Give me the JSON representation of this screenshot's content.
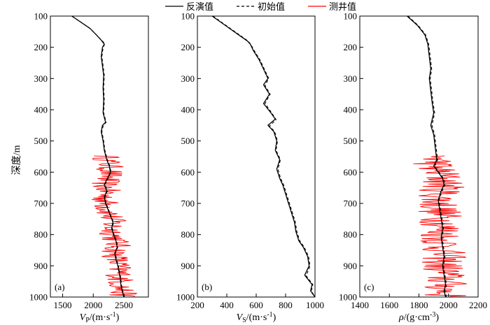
{
  "legend": {
    "items": [
      {
        "label": "反演值",
        "style": "solid",
        "color": "#000000"
      },
      {
        "label": "初始值",
        "style": "dashed",
        "color": "#000000"
      },
      {
        "label": "测井值",
        "style": "solid",
        "color": "#ff0000"
      }
    ]
  },
  "chart_data": [
    {
      "type": "line",
      "panel_tag": "(a)",
      "ylabel": "深度/m",
      "xlabel_main": "V",
      "xlabel_sub": "P",
      "xlabel_unit": "/(m·s",
      "xlabel_exp": "-1",
      "xlabel_close": ")",
      "xlim": [
        1300,
        2900
      ],
      "ylim": [
        100,
        1000
      ],
      "y_inverted": true,
      "xticks": [
        1500,
        2000,
        2500
      ],
      "yticks": [
        100,
        200,
        300,
        400,
        500,
        600,
        700,
        800,
        900,
        1000
      ],
      "xtick_labels": [
        "1500",
        "2000",
        "2500"
      ],
      "ytick_labels": [
        "100",
        "200",
        "300",
        "400",
        "500",
        "600",
        "700",
        "800",
        "900",
        "1000"
      ],
      "series": [
        {
          "role": "inverted",
          "color": "#000000",
          "dash": "none",
          "width": 1.3,
          "points": [
            [
              1650,
              100
            ],
            [
              1800,
              120
            ],
            [
              1950,
              140
            ],
            [
              2050,
              160
            ],
            [
              2120,
              175
            ],
            [
              2180,
              190
            ],
            [
              2150,
              200
            ],
            [
              2130,
              230
            ],
            [
              2150,
              260
            ],
            [
              2170,
              290
            ],
            [
              2160,
              330
            ],
            [
              2170,
              370
            ],
            [
              2160,
              410
            ],
            [
              2200,
              440
            ],
            [
              2150,
              450
            ],
            [
              2130,
              470
            ],
            [
              2160,
              500
            ],
            [
              2180,
              530
            ],
            [
              2220,
              560
            ],
            [
              2260,
              580
            ],
            [
              2280,
              600
            ],
            [
              2230,
              620
            ],
            [
              2180,
              640
            ],
            [
              2220,
              660
            ],
            [
              2180,
              680
            ],
            [
              2200,
              700
            ],
            [
              2240,
              720
            ],
            [
              2280,
              740
            ],
            [
              2320,
              760
            ],
            [
              2300,
              780
            ],
            [
              2330,
              800
            ],
            [
              2370,
              820
            ],
            [
              2390,
              840
            ],
            [
              2350,
              860
            ],
            [
              2370,
              880
            ],
            [
              2400,
              900
            ],
            [
              2420,
              920
            ],
            [
              2440,
              940
            ],
            [
              2450,
              960
            ],
            [
              2470,
              980
            ],
            [
              2500,
              1000
            ]
          ]
        },
        {
          "role": "initial",
          "color": "#000000",
          "dash": "4 3",
          "width": 1.1,
          "points": [
            [
              1650,
              100
            ],
            [
              1800,
              120
            ],
            [
              1950,
              140
            ],
            [
              2050,
              160
            ],
            [
              2120,
              175
            ],
            [
              2190,
              188
            ],
            [
              2160,
              200
            ],
            [
              2140,
              230
            ],
            [
              2160,
              260
            ],
            [
              2180,
              290
            ],
            [
              2170,
              330
            ],
            [
              2180,
              370
            ],
            [
              2170,
              410
            ],
            [
              2210,
              440
            ],
            [
              2160,
              452
            ],
            [
              2140,
              470
            ],
            [
              2170,
              500
            ],
            [
              2190,
              530
            ],
            [
              2230,
              560
            ],
            [
              2270,
              580
            ],
            [
              2290,
              600
            ],
            [
              2240,
              620
            ],
            [
              2190,
              640
            ],
            [
              2230,
              660
            ],
            [
              2190,
              680
            ],
            [
              2210,
              700
            ],
            [
              2250,
              720
            ],
            [
              2290,
              740
            ],
            [
              2330,
              760
            ],
            [
              2310,
              780
            ],
            [
              2340,
              800
            ],
            [
              2380,
              820
            ],
            [
              2400,
              840
            ],
            [
              2360,
              860
            ],
            [
              2380,
              880
            ],
            [
              2410,
              900
            ],
            [
              2430,
              920
            ],
            [
              2450,
              940
            ],
            [
              2460,
              960
            ],
            [
              2480,
              980
            ],
            [
              2510,
              1000
            ]
          ]
        },
        {
          "role": "logged",
          "color": "#ff0000",
          "dash": "none",
          "width": 0.9,
          "y_start": 548,
          "y_end": 1000,
          "y_step": 2.5,
          "center_from": "inverted",
          "x_spread": 230
        }
      ]
    },
    {
      "type": "line",
      "panel_tag": "(b)",
      "xlabel_main": "V",
      "xlabel_sub": "S",
      "xlabel_unit": "/(m·s",
      "xlabel_exp": "-1",
      "xlabel_close": ")",
      "xlim": [
        200,
        1000
      ],
      "ylim": [
        100,
        1000
      ],
      "y_inverted": true,
      "xticks": [
        200,
        400,
        600,
        800,
        1000
      ],
      "yticks": [
        100,
        200,
        300,
        400,
        500,
        600,
        700,
        800,
        900,
        1000
      ],
      "xtick_labels": [
        "200",
        "400",
        "600",
        "800",
        "1000"
      ],
      "ytick_labels": [
        "100",
        "200",
        "300",
        "400",
        "500",
        "600",
        "700",
        "800",
        "900",
        "1000"
      ],
      "series": [
        {
          "role": "inverted",
          "color": "#000000",
          "dash": "none",
          "width": 1.3,
          "points": [
            [
              300,
              100
            ],
            [
              360,
              120
            ],
            [
              420,
              140
            ],
            [
              480,
              160
            ],
            [
              540,
              180
            ],
            [
              560,
              190
            ],
            [
              580,
              210
            ],
            [
              620,
              240
            ],
            [
              650,
              270
            ],
            [
              680,
              300
            ],
            [
              650,
              320
            ],
            [
              690,
              350
            ],
            [
              650,
              380
            ],
            [
              700,
              410
            ],
            [
              730,
              430
            ],
            [
              680,
              450
            ],
            [
              720,
              470
            ],
            [
              740,
              500
            ],
            [
              730,
              530
            ],
            [
              760,
              560
            ],
            [
              740,
              590
            ],
            [
              760,
              620
            ],
            [
              780,
              640
            ],
            [
              800,
              670
            ],
            [
              820,
              700
            ],
            [
              840,
              730
            ],
            [
              860,
              760
            ],
            [
              870,
              790
            ],
            [
              890,
              820
            ],
            [
              920,
              840
            ],
            [
              950,
              870
            ],
            [
              960,
              900
            ],
            [
              930,
              930
            ],
            [
              980,
              960
            ],
            [
              970,
              980
            ],
            [
              1000,
              1000
            ]
          ]
        },
        {
          "role": "initial",
          "color": "#000000",
          "dash": "4 3",
          "width": 1.1,
          "points": [
            [
              305,
              100
            ],
            [
              365,
              120
            ],
            [
              425,
              140
            ],
            [
              485,
              160
            ],
            [
              545,
              180
            ],
            [
              565,
              192
            ],
            [
              585,
              210
            ],
            [
              625,
              240
            ],
            [
              655,
              270
            ],
            [
              685,
              300
            ],
            [
              660,
              322
            ],
            [
              695,
              350
            ],
            [
              660,
              380
            ],
            [
              705,
              410
            ],
            [
              735,
              432
            ],
            [
              690,
              452
            ],
            [
              725,
              470
            ],
            [
              745,
              500
            ],
            [
              735,
              530
            ],
            [
              765,
              560
            ],
            [
              748,
              590
            ],
            [
              766,
              620
            ],
            [
              786,
              640
            ],
            [
              806,
              670
            ],
            [
              826,
              700
            ],
            [
              846,
              730
            ],
            [
              866,
              760
            ],
            [
              876,
              790
            ],
            [
              896,
              820
            ],
            [
              926,
              840
            ],
            [
              956,
              870
            ],
            [
              966,
              900
            ],
            [
              940,
              932
            ],
            [
              985,
              960
            ],
            [
              975,
              980
            ],
            [
              1000,
              1000
            ]
          ]
        }
      ]
    },
    {
      "type": "line",
      "panel_tag": "(c)",
      "xlabel_main": "ρ",
      "xlabel_sub": "",
      "xlabel_unit": "/(g·cm",
      "xlabel_exp": "-3",
      "xlabel_close": ")",
      "xlim": [
        1400,
        2200
      ],
      "ylim": [
        100,
        1000
      ],
      "y_inverted": true,
      "xticks": [
        1400,
        1600,
        1800,
        2000,
        2200
      ],
      "yticks": [
        100,
        200,
        300,
        400,
        500,
        600,
        700,
        800,
        900,
        1000
      ],
      "xtick_labels": [
        "1400",
        "1600",
        "1800",
        "2000",
        "2200"
      ],
      "ytick_labels": [
        "100",
        "200",
        "300",
        "400",
        "500",
        "600",
        "700",
        "800",
        "900",
        "1000"
      ],
      "series": [
        {
          "role": "inverted",
          "color": "#000000",
          "dash": "none",
          "width": 1.3,
          "points": [
            [
              1720,
              100
            ],
            [
              1790,
              130
            ],
            [
              1840,
              160
            ],
            [
              1860,
              190
            ],
            [
              1870,
              230
            ],
            [
              1880,
              270
            ],
            [
              1870,
              300
            ],
            [
              1880,
              340
            ],
            [
              1890,
              380
            ],
            [
              1900,
              410
            ],
            [
              1880,
              450
            ],
            [
              1900,
              480
            ],
            [
              1910,
              520
            ],
            [
              1920,
              560
            ],
            [
              1900,
              580
            ],
            [
              1930,
              600
            ],
            [
              1960,
              620
            ],
            [
              1970,
              640
            ],
            [
              1950,
              660
            ],
            [
              1930,
              690
            ],
            [
              1940,
              720
            ],
            [
              1950,
              750
            ],
            [
              1960,
              780
            ],
            [
              1950,
              810
            ],
            [
              1960,
              840
            ],
            [
              1970,
              870
            ],
            [
              1960,
              900
            ],
            [
              1970,
              930
            ],
            [
              1980,
              960
            ],
            [
              1970,
              980
            ],
            [
              1980,
              1000
            ]
          ]
        },
        {
          "role": "initial",
          "color": "#000000",
          "dash": "4 3",
          "width": 1.1,
          "points": [
            [
              1725,
              100
            ],
            [
              1795,
              130
            ],
            [
              1845,
              160
            ],
            [
              1866,
              190
            ],
            [
              1876,
              230
            ],
            [
              1886,
              270
            ],
            [
              1876,
              300
            ],
            [
              1886,
              340
            ],
            [
              1896,
              380
            ],
            [
              1906,
              410
            ],
            [
              1888,
              450
            ],
            [
              1906,
              480
            ],
            [
              1916,
              520
            ],
            [
              1926,
              560
            ],
            [
              1906,
              582
            ],
            [
              1936,
              600
            ],
            [
              1966,
              620
            ],
            [
              1976,
              640
            ],
            [
              1956,
              660
            ],
            [
              1936,
              690
            ],
            [
              1946,
              720
            ],
            [
              1956,
              750
            ],
            [
              1966,
              780
            ],
            [
              1956,
              810
            ],
            [
              1966,
              840
            ],
            [
              1976,
              870
            ],
            [
              1966,
              900
            ],
            [
              1976,
              930
            ],
            [
              1986,
              960
            ],
            [
              1976,
              980
            ],
            [
              1986,
              1000
            ]
          ]
        },
        {
          "role": "logged",
          "color": "#ff0000",
          "dash": "none",
          "width": 0.9,
          "y_start": 548,
          "y_end": 1000,
          "y_step": 2.5,
          "center_from": "inverted",
          "x_spread": 150
        }
      ]
    }
  ]
}
